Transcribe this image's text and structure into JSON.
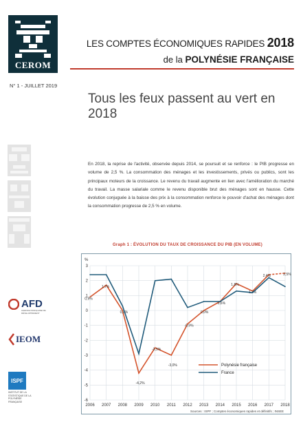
{
  "logo": {
    "text": "CEROM"
  },
  "header": {
    "line1_prefix": "LES COMPTES ÉCONOMIQUES RAPIDES ",
    "year": "2018",
    "line2_prefix": "de la ",
    "line2_bold": "POLYNÉSIE FRANÇAISE"
  },
  "issue": "N° 1 - JUILLET 2019",
  "title": "Tous les feux passent au vert en 2018",
  "body": "En 2018, la reprise de l'activité, observée depuis 2014, se poursuit et se renforce : le PIB progresse en volume de 2,5 %. La consommation des ménages et les investissements, privés ou publics, sont les principaux moteurs de la croissance. Le revenu du travail augmente en lien avec l'amélioration du marché du travail. La masse salariale comme le revenu disponible brut des ménages sont en hausse. Cette évolution conjuguée à la baisse des prix à la consommation renforce le pouvoir d'achat des ménages dont la consommation progresse de 2,5 % en volume.",
  "chart_title": "Graph 1 : ÉVOLUTION DU TAUX DE CROISSANCE DU PIB (EN VOLUME)",
  "chart_data": {
    "type": "line",
    "title": "Graph 1 : ÉVOLUTION DU TAUX DE CROISSANCE DU PIB (EN VOLUME)",
    "ylabel": "%",
    "x": [
      "2006",
      "2007",
      "2008",
      "2009",
      "2010",
      "2011",
      "2012",
      "2013",
      "2014",
      "2015",
      "2016",
      "2017",
      "2018"
    ],
    "ylim": [
      -6,
      3
    ],
    "yticks": [
      -6,
      -5,
      -4,
      -3,
      -2,
      -1,
      0,
      1,
      2,
      3
    ],
    "grid": true,
    "legend": "bottom-right",
    "series": [
      {
        "name": "Polynésie française",
        "color": "#d4532b",
        "values": [
          0.9,
          1.7,
          0.0,
          -4.2,
          -2.5,
          -3.0,
          -0.9,
          0.0,
          0.6,
          1.8,
          1.3,
          2.4,
          2.5
        ],
        "labels": [
          "0,9%",
          "1,7%",
          "0,0%",
          "-4,2%",
          "-2,5%",
          "-3,0%",
          "-0,9%",
          "0,0%",
          "0,6%",
          "1,8%",
          "1,3%",
          "2,4%",
          "2,5%"
        ],
        "dashed_last": true
      },
      {
        "name": "France",
        "color": "#1f5a7a",
        "values": [
          2.4,
          2.4,
          0.3,
          -2.9,
          2.0,
          2.1,
          0.2,
          0.6,
          0.6,
          1.3,
          1.2,
          2.2,
          1.6
        ]
      }
    ],
    "source": "Sources : ISPF ; Comptes économiques rapides et définitifs ; INSEE"
  },
  "brands": {
    "afd": "AFD",
    "afd_sub": "AGENCE FRANÇAISE DE DÉVELOPPEMENT",
    "ieom": "IEOM",
    "ispf": "ISPF",
    "ispf_sub": "INSTITUT DE LA STATISTIQUE DE LA POLYNÉSIE FRANÇAISE"
  },
  "colors": {
    "accent": "#c0392b",
    "polynesie": "#d4532b",
    "france": "#1f5a7a",
    "logo_bg": "#0f2f3a"
  }
}
